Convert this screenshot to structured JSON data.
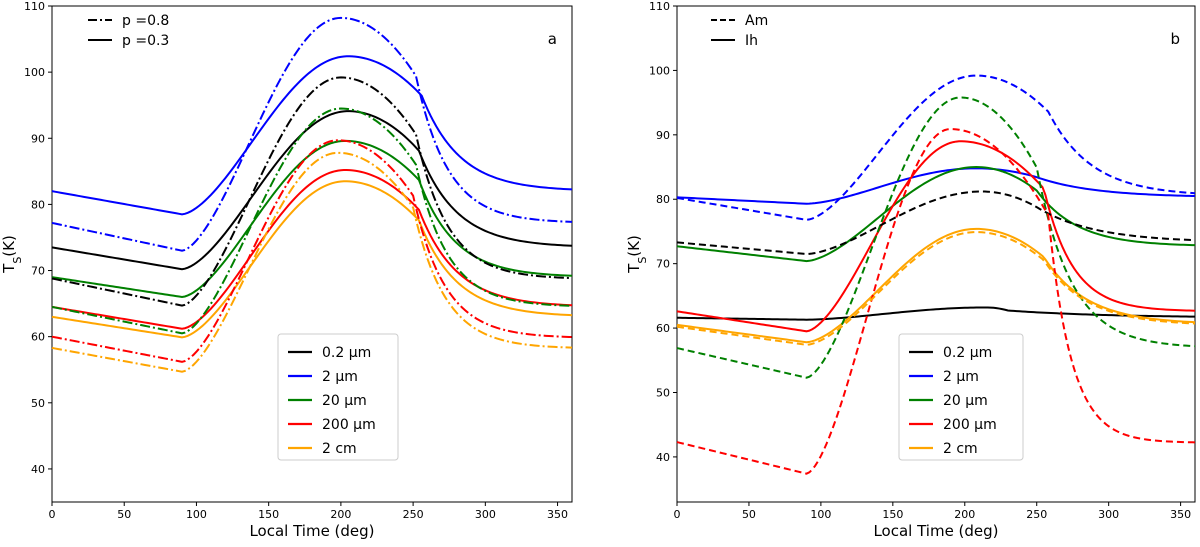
{
  "figure": {
    "colors": {
      "0.2 µm": "#000000",
      "2 µm": "#0000ff",
      "20 µm": "#008000",
      "200 µm": "#ff0000",
      "2 cm": "#ffa500"
    },
    "size_legend": [
      {
        "label": "0.2 $\\mu$m",
        "display": "0.2 μm",
        "key": "0.2 µm"
      },
      {
        "label": "2 $\\mu$m",
        "display": "2 μm",
        "key": "2 µm"
      },
      {
        "label": "20 $\\mu$m",
        "display": "20 μm",
        "key": "20 µm"
      },
      {
        "label": "200 $\\mu$m",
        "display": "200 μm",
        "key": "200 µm"
      },
      {
        "label": "2 cm",
        "display": "2 cm",
        "key": "2 cm"
      }
    ]
  },
  "chart_data": [
    {
      "type": "line",
      "panel": "a",
      "xlabel": "Local Time (deg)",
      "ylabel": "T_S(K)",
      "xlim": [
        0,
        360
      ],
      "ylim": [
        35,
        110
      ],
      "xticks": [
        0,
        50,
        100,
        150,
        200,
        250,
        300,
        350
      ],
      "yticks": [
        40,
        50,
        60,
        70,
        80,
        90,
        100,
        110
      ],
      "style_legend": [
        {
          "label": "p =0.8",
          "style": "dashdot"
        },
        {
          "label": "p =0.3",
          "style": "solid"
        }
      ],
      "series": [
        {
          "name": "0.2 µm",
          "style": "solid",
          "night_start": 73.5,
          "night_end": 70.2,
          "peak": 94.1,
          "peak_x": 205,
          "rise_width": 50,
          "fall_width": 26,
          "fall_start": 254,
          "tail_end": 73.5
        },
        {
          "name": "2 µm",
          "style": "solid",
          "night_start": 82.0,
          "night_end": 78.5,
          "peak": 102.4,
          "peak_x": 205,
          "rise_width": 48,
          "fall_width": 26,
          "fall_start": 256,
          "tail_end": 82.0
        },
        {
          "name": "20 µm",
          "style": "solid",
          "night_start": 69.0,
          "night_end": 66.0,
          "peak": 89.6,
          "peak_x": 203,
          "rise_width": 52,
          "fall_width": 25,
          "fall_start": 254,
          "tail_end": 69.0
        },
        {
          "name": "200 µm",
          "style": "solid",
          "night_start": 64.5,
          "night_end": 61.2,
          "peak": 85.2,
          "peak_x": 203,
          "rise_width": 55,
          "fall_width": 26,
          "fall_start": 254,
          "tail_end": 64.5
        },
        {
          "name": "2 cm",
          "style": "solid",
          "night_start": 63.0,
          "night_end": 59.9,
          "peak": 83.5,
          "peak_x": 203,
          "rise_width": 55,
          "fall_width": 26,
          "fall_start": 254,
          "tail_end": 63.0
        },
        {
          "name": "0.2 µm",
          "style": "dashdot",
          "night_start": 68.8,
          "night_end": 64.7,
          "peak": 99.2,
          "peak_x": 200,
          "rise_width": 42,
          "fall_width": 22,
          "fall_start": 252,
          "tail_end": 68.7
        },
        {
          "name": "2 µm",
          "style": "dashdot",
          "night_start": 77.2,
          "night_end": 73.0,
          "peak": 108.2,
          "peak_x": 200,
          "rise_width": 40,
          "fall_width": 22,
          "fall_start": 252,
          "tail_end": 77.2
        },
        {
          "name": "20 µm",
          "style": "dashdot",
          "night_start": 64.5,
          "night_end": 60.5,
          "peak": 94.5,
          "peak_x": 200,
          "rise_width": 42,
          "fall_width": 22,
          "fall_start": 252,
          "tail_end": 64.5
        },
        {
          "name": "200 µm",
          "style": "dashdot",
          "night_start": 60.0,
          "night_end": 56.2,
          "peak": 89.7,
          "peak_x": 198,
          "rise_width": 44,
          "fall_width": 22,
          "fall_start": 250,
          "tail_end": 59.8
        },
        {
          "name": "2 cm",
          "style": "dashdot",
          "night_start": 58.3,
          "night_end": 54.7,
          "peak": 87.8,
          "peak_x": 198,
          "rise_width": 44,
          "fall_width": 22,
          "fall_start": 250,
          "tail_end": 58.2
        }
      ]
    },
    {
      "type": "line",
      "panel": "b",
      "xlabel": "Local Time (deg)",
      "ylabel": "T_S(K)",
      "xlim": [
        0,
        360
      ],
      "ylim": [
        33,
        110
      ],
      "xticks": [
        0,
        50,
        100,
        150,
        200,
        250,
        300,
        350
      ],
      "yticks": [
        40,
        50,
        60,
        70,
        80,
        90,
        100,
        110
      ],
      "style_legend": [
        {
          "label": "Am",
          "style": "dashed"
        },
        {
          "label": "Ih",
          "style": "solid"
        }
      ],
      "series": [
        {
          "name": "0.2 µm",
          "style": "solid",
          "night_start": 61.6,
          "night_end": 61.3,
          "peak": 63.2,
          "peak_x": 215,
          "rise_width": 80,
          "fall_width": 70,
          "fall_start": 230,
          "tail_end": 61.6
        },
        {
          "name": "2 µm",
          "style": "solid",
          "night_start": 80.3,
          "night_end": 79.3,
          "peak": 84.8,
          "peak_x": 208,
          "rise_width": 75,
          "fall_width": 40,
          "fall_start": 250,
          "tail_end": 80.3
        },
        {
          "name": "20 µm",
          "style": "solid",
          "night_start": 72.7,
          "night_end": 70.4,
          "peak": 85.0,
          "peak_x": 208,
          "rise_width": 55,
          "fall_width": 28,
          "fall_start": 250,
          "tail_end": 72.7
        },
        {
          "name": "200 µm",
          "style": "solid",
          "night_start": 62.6,
          "night_end": 59.5,
          "peak": 89.0,
          "peak_x": 197,
          "rise_width": 40,
          "fall_width": 20,
          "fall_start": 255,
          "tail_end": 62.6
        },
        {
          "name": "2 cm",
          "style": "solid",
          "night_start": 60.5,
          "night_end": 57.8,
          "peak": 75.4,
          "peak_x": 208,
          "rise_width": 55,
          "fall_width": 30,
          "fall_start": 255,
          "tail_end": 60.6
        },
        {
          "name": "0.2 µm",
          "style": "dashed",
          "night_start": 73.3,
          "night_end": 71.5,
          "peak": 81.2,
          "peak_x": 212,
          "rise_width": 60,
          "fall_width": 40,
          "fall_start": 250,
          "tail_end": 73.3
        },
        {
          "name": "2 µm",
          "style": "dashed",
          "night_start": 80.2,
          "night_end": 76.8,
          "peak": 99.2,
          "peak_x": 208,
          "rise_width": 48,
          "fall_width": 30,
          "fall_start": 258,
          "tail_end": 80.5
        },
        {
          "name": "20 µm",
          "style": "dashed",
          "night_start": 56.9,
          "night_end": 52.3,
          "peak": 95.8,
          "peak_x": 197,
          "rise_width": 38,
          "fall_width": 24,
          "fall_start": 250,
          "tail_end": 56.9
        },
        {
          "name": "200 µm",
          "style": "dashed",
          "night_start": 42.3,
          "night_end": 37.4,
          "peak": 90.9,
          "peak_x": 190,
          "rise_width": 30,
          "fall_width": 16,
          "fall_start": 258,
          "tail_end": 42.2
        },
        {
          "name": "2 cm",
          "style": "dashed",
          "night_start": 60.2,
          "night_end": 57.4,
          "peak": 74.9,
          "peak_x": 208,
          "rise_width": 55,
          "fall_width": 30,
          "fall_start": 255,
          "tail_end": 60.4
        }
      ]
    }
  ]
}
